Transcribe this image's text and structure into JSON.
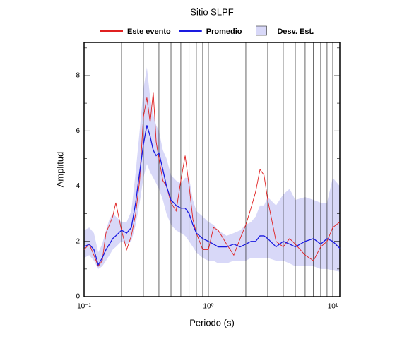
{
  "chart_data": {
    "type": "line",
    "title": "Sitio SLPF",
    "xlabel": "Periodo (s)",
    "ylabel": "Amplitud",
    "xscale": "log",
    "grid": true,
    "legend": "top",
    "xlim": [
      0.1,
      11.4
    ],
    "ylim": [
      0,
      9.2
    ],
    "xticks": [
      {
        "value": 0.1,
        "label": "10⁻¹"
      },
      {
        "value": 1,
        "label": "10⁰"
      },
      {
        "value": 10,
        "label": "10¹"
      }
    ],
    "xminor": [
      0.2,
      0.3,
      0.4,
      0.5,
      0.6,
      0.7,
      0.8,
      0.9,
      2,
      3,
      4,
      5,
      6,
      7,
      8,
      9
    ],
    "yticks": [
      0,
      2,
      4,
      6,
      8
    ],
    "yminor": [
      1,
      3,
      5,
      7,
      9
    ],
    "x": [
      0.1,
      0.11,
      0.12,
      0.13,
      0.14,
      0.15,
      0.16,
      0.17,
      0.18,
      0.2,
      0.22,
      0.24,
      0.26,
      0.28,
      0.3,
      0.32,
      0.34,
      0.36,
      0.38,
      0.4,
      0.43,
      0.46,
      0.5,
      0.55,
      0.6,
      0.65,
      0.7,
      0.75,
      0.8,
      0.9,
      1.0,
      1.1,
      1.2,
      1.4,
      1.6,
      1.8,
      2.0,
      2.2,
      2.4,
      2.6,
      2.8,
      3.0,
      3.5,
      4,
      4.5,
      5,
      6,
      7,
      8,
      9,
      10,
      11.4
    ],
    "band": {
      "name": "Desv. Est.",
      "color": "#d8d8f8",
      "upper": [
        2.4,
        2.5,
        2.3,
        1.6,
        1.9,
        2.4,
        2.8,
        3.0,
        2.9,
        2.7,
        2.7,
        3.1,
        4.5,
        6.0,
        7.5,
        8.3,
        7.2,
        6.6,
        6.2,
        6.0,
        5.3,
        5.0,
        4.4,
        4.2,
        4.1,
        4.3,
        4.3,
        3.5,
        3.1,
        2.9,
        2.7,
        2.6,
        2.4,
        2.2,
        2.3,
        2.4,
        2.6,
        2.7,
        2.9,
        3.3,
        3.3,
        3.6,
        3.3,
        3.7,
        3.9,
        3.5,
        3.6,
        3.5,
        3.4,
        3.4,
        4.3,
        4.0
      ],
      "lower": [
        1.4,
        1.5,
        1.3,
        1.0,
        1.1,
        1.3,
        1.5,
        1.7,
        1.8,
        2.0,
        1.9,
        2.0,
        2.6,
        3.4,
        4.3,
        4.8,
        4.5,
        4.3,
        4.1,
        3.9,
        3.5,
        3.0,
        2.6,
        2.4,
        2.3,
        2.2,
        2.0,
        1.8,
        1.6,
        1.4,
        1.3,
        1.3,
        1.2,
        1.2,
        1.3,
        1.3,
        1.3,
        1.4,
        1.4,
        1.4,
        1.4,
        1.4,
        1.3,
        1.3,
        1.2,
        1.1,
        1.1,
        1.1,
        1.0,
        1.0,
        0.95,
        0.9
      ]
    },
    "series": [
      {
        "name": "Este evento",
        "color": "#e02020",
        "values": [
          1.7,
          1.9,
          1.5,
          1.1,
          1.3,
          2.3,
          2.6,
          2.9,
          3.4,
          2.4,
          1.7,
          2.2,
          3.0,
          4.2,
          6.5,
          7.2,
          6.3,
          7.4,
          5.6,
          5.0,
          4.2,
          4.0,
          3.4,
          3.1,
          4.2,
          5.1,
          4.0,
          2.8,
          2.3,
          1.7,
          1.7,
          2.5,
          2.4,
          1.9,
          1.5,
          2.1,
          2.6,
          3.2,
          3.8,
          4.6,
          4.4,
          3.5,
          2.0,
          1.8,
          2.1,
          1.9,
          1.5,
          1.3,
          1.8,
          2.0,
          2.5,
          2.7
        ]
      },
      {
        "name": "Promedio",
        "color": "#1a1ae0",
        "values": [
          1.8,
          1.9,
          1.7,
          1.15,
          1.4,
          1.7,
          1.9,
          2.1,
          2.2,
          2.4,
          2.3,
          2.5,
          3.4,
          4.5,
          5.5,
          6.2,
          5.8,
          5.3,
          5.1,
          5.2,
          4.6,
          4.0,
          3.5,
          3.3,
          3.2,
          3.2,
          3.0,
          2.6,
          2.3,
          2.1,
          2.0,
          1.9,
          1.8,
          1.8,
          1.9,
          1.8,
          1.9,
          2.0,
          2.0,
          2.2,
          2.2,
          2.1,
          1.8,
          2.0,
          1.9,
          1.8,
          2.0,
          2.1,
          1.9,
          2.1,
          2.0,
          1.75
        ]
      }
    ]
  }
}
